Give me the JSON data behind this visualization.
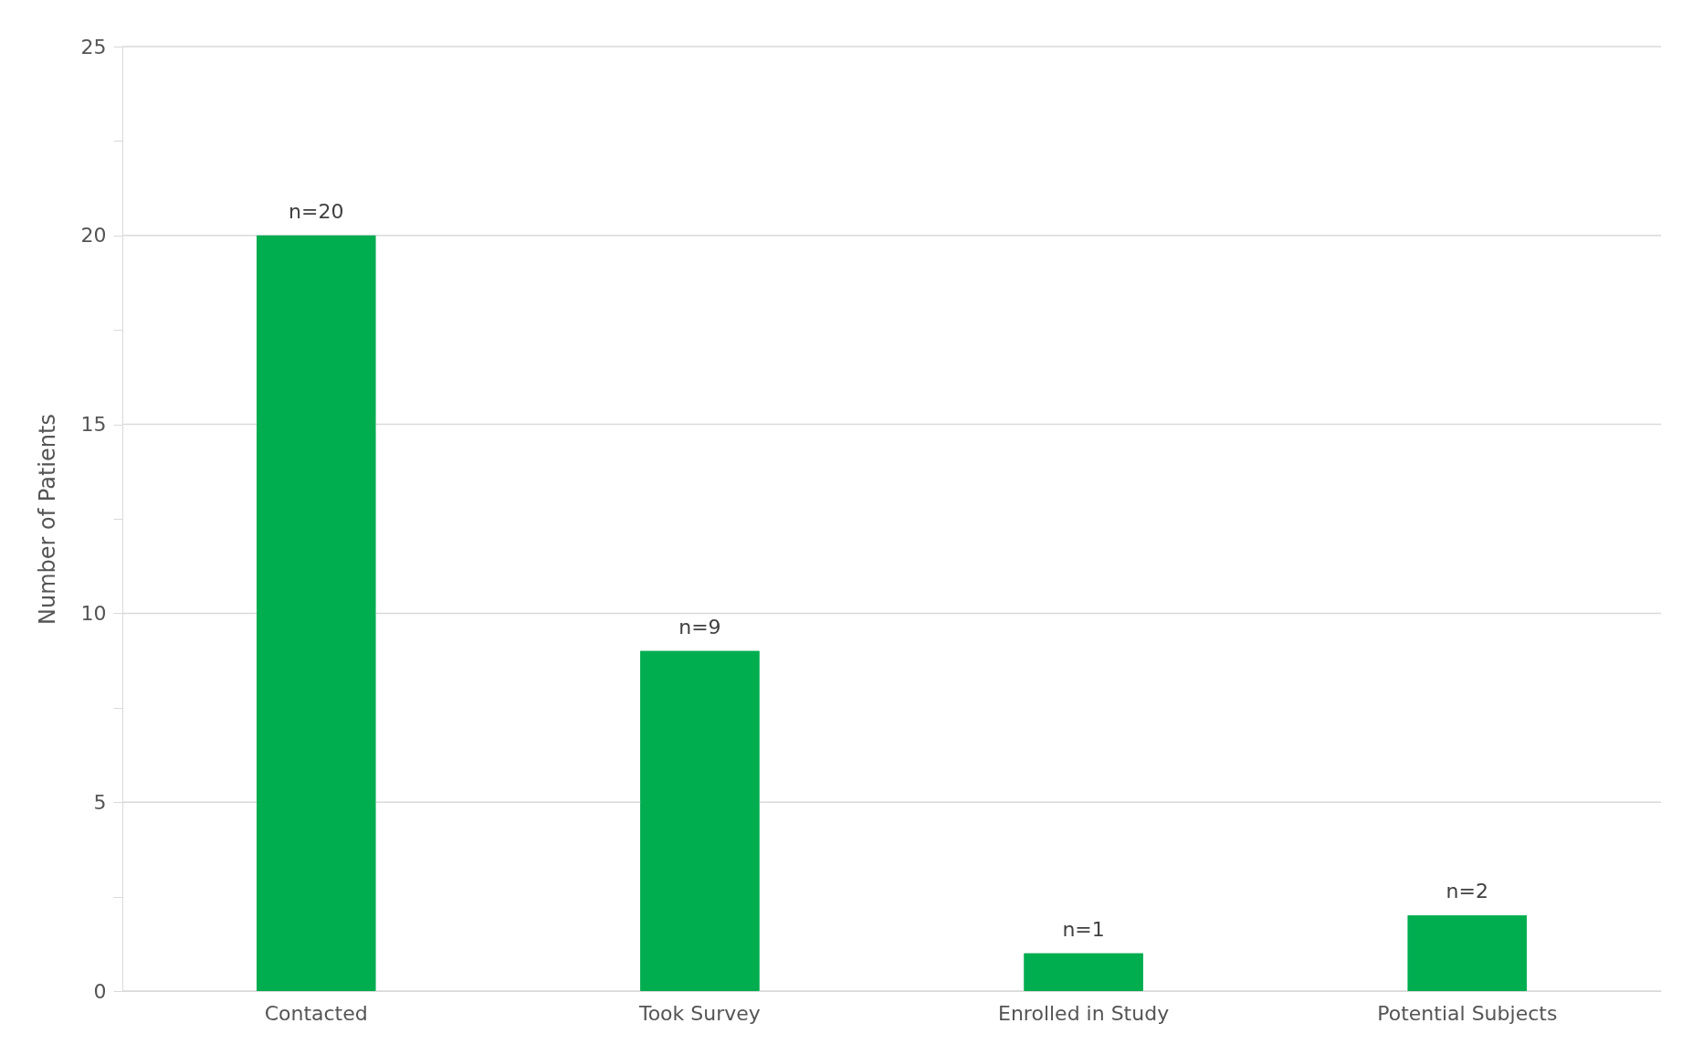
{
  "chart_data": {
    "type": "bar",
    "ylabel": "Number of  Patients",
    "categories": [
      "Contacted",
      "Took Survey",
      "Enrolled in Study",
      "Potential Subjects"
    ],
    "values": [
      20,
      9,
      1,
      2
    ],
    "color": "#00ad4f",
    "value_labels": [
      "n=20",
      "n=9",
      "n=1",
      "n=2"
    ],
    "ylim": [
      0,
      25
    ],
    "yticks": [
      0,
      {
        "value": 2.5,
        "label": null
      },
      5,
      {
        "value": 7.5,
        "label": null
      },
      10,
      {
        "value": 12.5,
        "label": null
      },
      15,
      {
        "value": 17.5,
        "label": null
      },
      20,
      {
        "value": 22.5,
        "label": null
      },
      25
    ],
    "grid": "y"
  }
}
